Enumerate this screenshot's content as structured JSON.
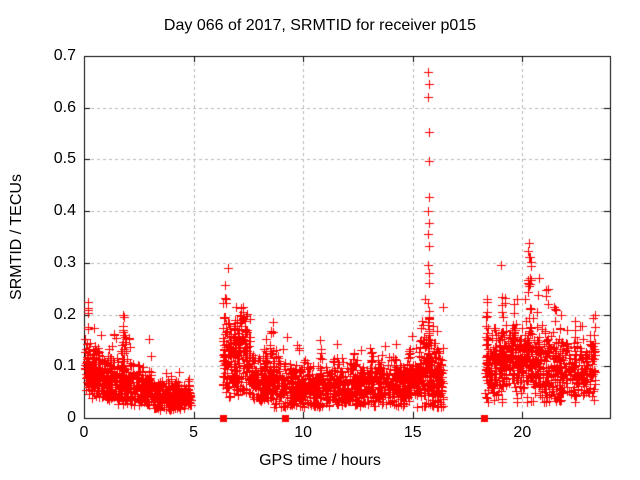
{
  "chart_data": {
    "type": "scatter",
    "title": "Day 066 of 2017, SRMTID for receiver p015",
    "xlabel": "GPS time / hours",
    "ylabel": "SRMTID / TECUs",
    "xlim": [
      0,
      24
    ],
    "ylim": [
      0,
      0.7
    ],
    "xticks": [
      {
        "label": "0",
        "value": 0
      },
      {
        "label": "5",
        "value": 5
      },
      {
        "label": "10",
        "value": 10
      },
      {
        "label": "15",
        "value": 15
      },
      {
        "label": "20",
        "value": 20
      }
    ],
    "yticks": [
      {
        "label": "0",
        "value": 0
      },
      {
        "label": "0.1",
        "value": 0.1
      },
      {
        "label": "0.2",
        "value": 0.2
      },
      {
        "label": "0.3",
        "value": 0.3
      },
      {
        "label": "0.4",
        "value": 0.4
      },
      {
        "label": "0.5",
        "value": 0.5
      },
      {
        "label": "0.6",
        "value": 0.6
      },
      {
        "label": "0.7",
        "value": 0.7
      }
    ],
    "grid": true,
    "legend": null,
    "colors": {
      "marker": "#ff0000",
      "grid": "#b9b9b9",
      "border": "#000000",
      "text": "#000000",
      "background": "#ffffff"
    },
    "marker": {
      "shape": "plus",
      "size": 9
    },
    "axis_squares": {
      "shape": "filled-square",
      "size": 7,
      "y": 0,
      "x": [
        6.35,
        9.15,
        18.26
      ]
    },
    "spike_points": [
      [
        15.7,
        0.669
      ],
      [
        15.72,
        0.646
      ],
      [
        15.71,
        0.621
      ],
      [
        15.73,
        0.554
      ],
      [
        15.72,
        0.497
      ],
      [
        15.74,
        0.428
      ],
      [
        15.7,
        0.4
      ],
      [
        15.73,
        0.377
      ],
      [
        15.71,
        0.356
      ],
      [
        15.74,
        0.332
      ],
      [
        15.7,
        0.296
      ],
      [
        15.73,
        0.281
      ],
      [
        15.72,
        0.262
      ],
      [
        15.69,
        0.222
      ],
      [
        15.74,
        0.207
      ],
      [
        15.76,
        0.193
      ],
      [
        15.68,
        0.18
      ],
      [
        15.73,
        0.168
      ],
      [
        15.71,
        0.152
      ],
      [
        15.74,
        0.142
      ]
    ],
    "segments": [
      {
        "x0": 0.02,
        "x1": 1.55,
        "n": 240,
        "y0": 0.085,
        "y1": 0.075,
        "j": 0.05,
        "min": 0.035
      },
      {
        "x0": 1.55,
        "x1": 3.1,
        "n": 220,
        "y0": 0.068,
        "y1": 0.05,
        "j": 0.04,
        "min": 0.025
      },
      {
        "x0": 3.1,
        "x1": 4.4,
        "n": 190,
        "y0": 0.045,
        "y1": 0.04,
        "j": 0.032,
        "min": 0.016
      },
      {
        "x0": 4.4,
        "x1": 4.9,
        "n": 55,
        "y0": 0.042,
        "y1": 0.045,
        "j": 0.028,
        "min": 0.018
      },
      {
        "x0": 6.32,
        "x1": 7.6,
        "n": 230,
        "y0": 0.115,
        "y1": 0.1,
        "j": 0.08,
        "min": 0.04
      },
      {
        "x0": 7.6,
        "x1": 8.45,
        "n": 130,
        "y0": 0.08,
        "y1": 0.07,
        "j": 0.05,
        "min": 0.03
      },
      {
        "x0": 8.45,
        "x1": 9.3,
        "n": 100,
        "y0": 0.075,
        "y1": 0.055,
        "j": 0.055,
        "min": 0.02
      },
      {
        "x0": 9.35,
        "x1": 12.4,
        "n": 420,
        "y0": 0.06,
        "y1": 0.058,
        "j": 0.042,
        "min": 0.022
      },
      {
        "x0": 12.4,
        "x1": 15.25,
        "n": 400,
        "y0": 0.058,
        "y1": 0.068,
        "j": 0.042,
        "min": 0.022
      },
      {
        "x0": 15.25,
        "x1": 16.4,
        "n": 220,
        "y0": 0.09,
        "y1": 0.065,
        "j": 0.07,
        "min": 0.02
      },
      {
        "x0": 18.28,
        "x1": 19.9,
        "n": 260,
        "y0": 0.1,
        "y1": 0.11,
        "j": 0.065,
        "min": 0.03
      },
      {
        "x0": 19.9,
        "x1": 22.1,
        "n": 300,
        "y0": 0.105,
        "y1": 0.09,
        "j": 0.075,
        "min": 0.03
      },
      {
        "x0": 22.1,
        "x1": 23.35,
        "n": 150,
        "y0": 0.09,
        "y1": 0.105,
        "j": 0.055,
        "min": 0.03
      }
    ],
    "bumps": [
      {
        "x": 0.18,
        "w": 0.18,
        "base": 0.1,
        "top": 0.225,
        "n": 16
      },
      {
        "x": 0.55,
        "w": 0.3,
        "base": 0.09,
        "top": 0.14,
        "n": 10
      },
      {
        "x": 1.85,
        "w": 0.28,
        "base": 0.09,
        "top": 0.2,
        "n": 24
      },
      {
        "x": 2.1,
        "w": 0.15,
        "base": 0.08,
        "top": 0.155,
        "n": 8
      },
      {
        "x": 6.45,
        "w": 0.15,
        "base": 0.1,
        "top": 0.258,
        "n": 14
      },
      {
        "x": 6.95,
        "w": 0.4,
        "base": 0.12,
        "top": 0.19,
        "n": 22
      },
      {
        "x": 7.3,
        "w": 0.25,
        "base": 0.12,
        "top": 0.215,
        "n": 16
      },
      {
        "x": 8.55,
        "w": 0.25,
        "base": 0.08,
        "top": 0.185,
        "n": 16
      },
      {
        "x": 9.85,
        "w": 0.15,
        "base": 0.07,
        "top": 0.135,
        "n": 8
      },
      {
        "x": 10.8,
        "w": 0.2,
        "base": 0.07,
        "top": 0.15,
        "n": 10
      },
      {
        "x": 11.4,
        "w": 0.2,
        "base": 0.065,
        "top": 0.115,
        "n": 7
      },
      {
        "x": 12.3,
        "w": 0.15,
        "base": 0.07,
        "top": 0.125,
        "n": 8
      },
      {
        "x": 13.1,
        "w": 0.2,
        "base": 0.07,
        "top": 0.135,
        "n": 8
      },
      {
        "x": 14.2,
        "w": 0.2,
        "base": 0.065,
        "top": 0.115,
        "n": 7
      },
      {
        "x": 14.9,
        "w": 0.25,
        "base": 0.07,
        "top": 0.13,
        "n": 9
      },
      {
        "x": 15.45,
        "w": 0.25,
        "base": 0.08,
        "top": 0.175,
        "n": 12
      },
      {
        "x": 15.72,
        "w": 0.14,
        "base": 0.1,
        "top": 0.195,
        "n": 16
      },
      {
        "x": 16.1,
        "w": 0.25,
        "base": 0.06,
        "top": 0.145,
        "n": 10
      },
      {
        "x": 18.38,
        "w": 0.15,
        "base": 0.08,
        "top": 0.23,
        "n": 12
      },
      {
        "x": 19.1,
        "w": 0.3,
        "base": 0.1,
        "top": 0.295,
        "n": 18
      },
      {
        "x": 19.55,
        "w": 0.25,
        "base": 0.1,
        "top": 0.22,
        "n": 12
      },
      {
        "x": 20.35,
        "w": 0.35,
        "base": 0.12,
        "top": 0.338,
        "n": 26
      },
      {
        "x": 20.7,
        "w": 0.2,
        "base": 0.12,
        "top": 0.27,
        "n": 12
      },
      {
        "x": 21.1,
        "w": 0.25,
        "base": 0.1,
        "top": 0.25,
        "n": 12
      },
      {
        "x": 21.5,
        "w": 0.2,
        "base": 0.09,
        "top": 0.21,
        "n": 9
      },
      {
        "x": 22.4,
        "w": 0.25,
        "base": 0.08,
        "top": 0.17,
        "n": 9
      },
      {
        "x": 23.1,
        "w": 0.25,
        "base": 0.08,
        "top": 0.16,
        "n": 9
      }
    ],
    "seed": 2017066
  }
}
